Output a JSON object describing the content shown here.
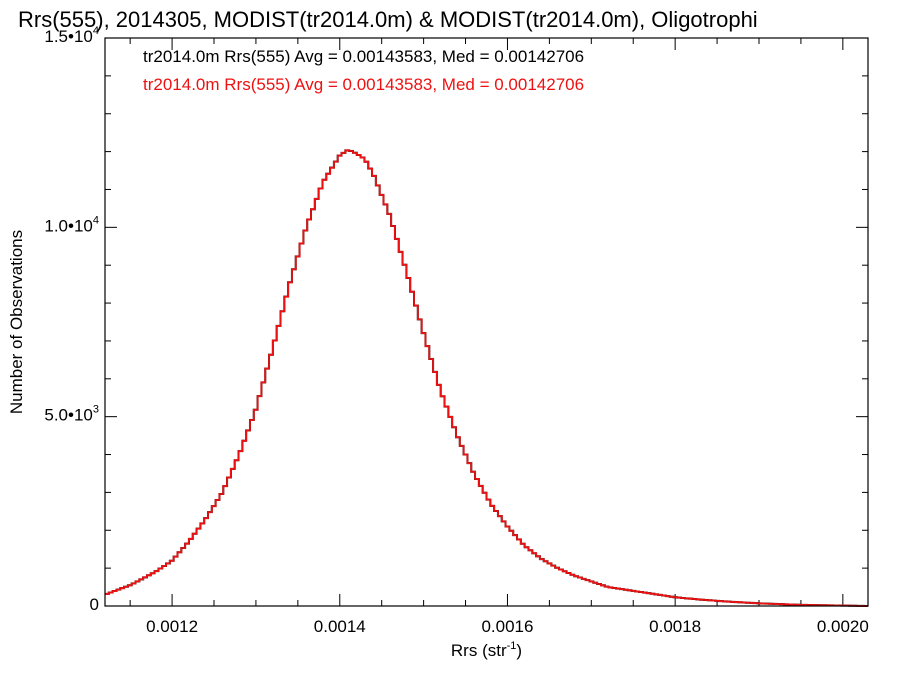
{
  "chart_data": {
    "type": "line",
    "step": true,
    "title": "Rrs(555), 2014305, MODIST(tr2014.0m) & MODIST(tr2014.0m), Oligotrophi",
    "xlabel": {
      "base": "Rrs (str",
      "sup": "-1",
      "tail": ")"
    },
    "ylabel": "Number of Observations",
    "xlim": [
      0.00112,
      0.00203
    ],
    "ylim": [
      0,
      15000
    ],
    "grid": false,
    "legend_position": "top-left",
    "x_ticks": [
      {
        "value": 0.0012,
        "label": "0.0012"
      },
      {
        "value": 0.0014,
        "label": "0.0014"
      },
      {
        "value": 0.0016,
        "label": "0.0016"
      },
      {
        "value": 0.0018,
        "label": "0.0018"
      },
      {
        "value": 0.002,
        "label": "0.0020"
      }
    ],
    "y_ticks": [
      {
        "value": 0,
        "label": "0",
        "sup": ""
      },
      {
        "value": 5000,
        "label": "5.0•10",
        "sup": "3"
      },
      {
        "value": 10000,
        "label": "1.0•10",
        "sup": "4"
      },
      {
        "value": 15000,
        "label": "1.5•10",
        "sup": "4"
      }
    ],
    "annotations": [
      {
        "text": "tr2014.0m Rrs(555) Avg = 0.00143583, Med = 0.00142706",
        "color": "#000000"
      },
      {
        "text": "tr2014.0m Rrs(555) Avg = 0.00143583, Med = 0.00142706",
        "color": "#ee1111"
      }
    ],
    "series": [
      {
        "color": "#000000"
      },
      {
        "color": "#ee1111"
      }
    ],
    "x": [
      0.00112,
      0.00115,
      0.00118,
      0.0012,
      0.00122,
      0.00124,
      0.00126,
      0.00128,
      0.0013,
      0.00132,
      0.00134,
      0.00136,
      0.00138,
      0.0014,
      0.00141,
      0.00142,
      0.00143,
      0.00144,
      0.00146,
      0.00148,
      0.0015,
      0.00152,
      0.00154,
      0.00156,
      0.00158,
      0.0016,
      0.00162,
      0.00164,
      0.00166,
      0.00168,
      0.0017,
      0.00172,
      0.00175,
      0.00178,
      0.0018,
      0.00183,
      0.00186,
      0.0019,
      0.00195,
      0.00203
    ],
    "y": [
      300,
      550,
      900,
      1200,
      1700,
      2300,
      3000,
      4000,
      5200,
      6800,
      8500,
      10000,
      11200,
      11900,
      12050,
      11950,
      11800,
      11400,
      10300,
      8800,
      7200,
      5700,
      4500,
      3500,
      2700,
      2100,
      1600,
      1250,
      1000,
      800,
      650,
      500,
      400,
      300,
      230,
      170,
      120,
      70,
      30,
      0
    ]
  }
}
